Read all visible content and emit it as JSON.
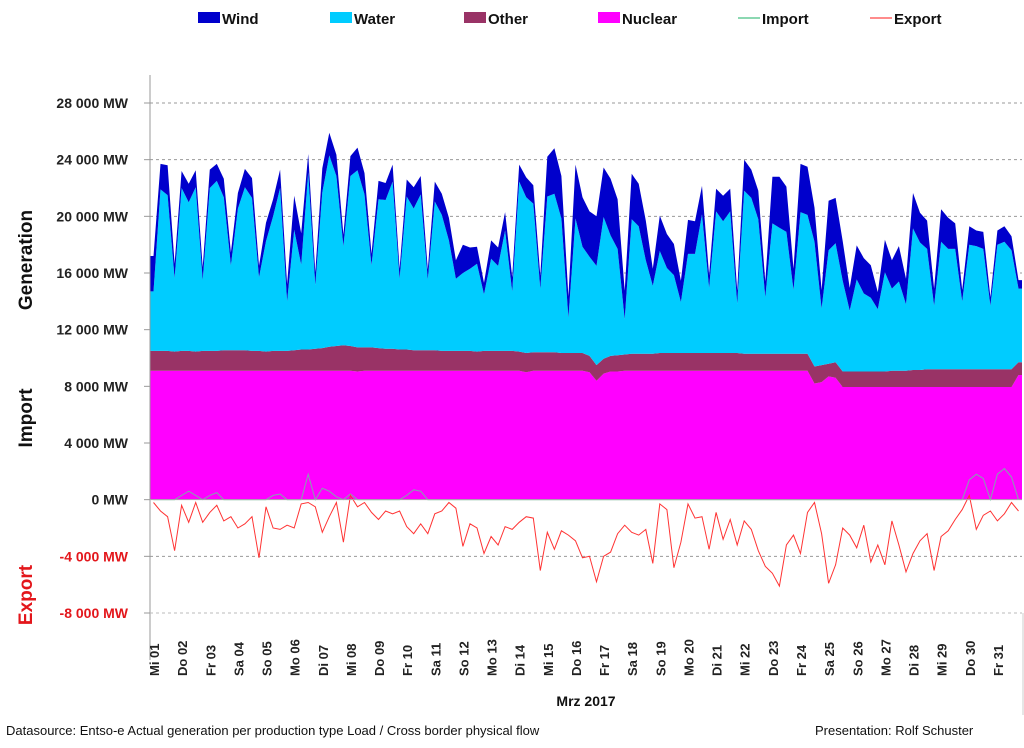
{
  "chart_data": {
    "type": "area",
    "title": "",
    "xlabel": "Mrz 2017",
    "ylabels": [
      {
        "text": "Generation",
        "color": "#111111"
      },
      {
        "text": "Import",
        "color": "#111111"
      },
      {
        "text": "Export",
        "color": "#e3161b"
      }
    ],
    "ylim": [
      -8000,
      28000
    ],
    "yticks": [
      {
        "value": 28000,
        "label": "28 000 MW",
        "negative": false
      },
      {
        "value": 24000,
        "label": "24 000 MW",
        "negative": false
      },
      {
        "value": 20000,
        "label": "20 000 MW",
        "negative": false
      },
      {
        "value": 16000,
        "label": "16 000 MW",
        "negative": false
      },
      {
        "value": 12000,
        "label": "12 000 MW",
        "negative": false
      },
      {
        "value": 8000,
        "label": "8 000 MW",
        "negative": false
      },
      {
        "value": 4000,
        "label": "4 000 MW",
        "negative": false
      },
      {
        "value": 0,
        "label": "0 MW",
        "negative": false
      },
      {
        "value": -4000,
        "label": "-4 000 MW",
        "negative": true
      },
      {
        "value": -8000,
        "label": "-8 000 MW",
        "negative": true
      }
    ],
    "grid": "dashed horizontal",
    "legend_position": "top",
    "categories": [
      "Mi 01",
      "Do 02",
      "Fr 03",
      "Sa 04",
      "So 05",
      "Mo 06",
      "Di 07",
      "Mi 08",
      "Do 09",
      "Fr 10",
      "Sa 11",
      "So 12",
      "Mo 13",
      "Di 14",
      "Mi 15",
      "Do 16",
      "Fr 17",
      "Sa 18",
      "So 19",
      "Mo 20",
      "Di 21",
      "Mi 22",
      "Do 23",
      "Fr 24",
      "Sa 25",
      "So 26",
      "Mo 27",
      "Di 28",
      "Mi 29",
      "Do 30",
      "Fr 31"
    ],
    "samples_per_day": 4,
    "series": [
      {
        "name": "Nuclear",
        "kind": "stacked-area",
        "color": "#ff00ff",
        "values": [
          9100,
          9100,
          9100,
          9100,
          9100,
          9100,
          9100,
          9100,
          9100,
          9100,
          9100,
          9100,
          9100,
          9100,
          9100,
          9100,
          9100,
          9100,
          9100,
          9100,
          9100,
          9100,
          9100,
          9100,
          9100,
          9100,
          9100,
          9100,
          9100,
          9050,
          9100,
          9100,
          9100,
          9100,
          9100,
          9100,
          9100,
          9100,
          9100,
          9100,
          9100,
          9100,
          9100,
          9100,
          9100,
          9100,
          9100,
          9100,
          9100,
          9100,
          9100,
          9100,
          9100,
          9000,
          9100,
          9100,
          9100,
          9100,
          9100,
          9100,
          9100,
          9100,
          9000,
          8400,
          8900,
          9050,
          9050,
          9100,
          9100,
          9100,
          9100,
          9100,
          9100,
          9100,
          9100,
          9100,
          9100,
          9100,
          9100,
          9100,
          9100,
          9100,
          9100,
          9100,
          9100,
          9100,
          9100,
          9100,
          9100,
          9100,
          9100,
          9100,
          9100,
          9100,
          8200,
          8300,
          8700,
          8600,
          7950,
          7950,
          7950,
          7950,
          7950,
          7950,
          7950,
          7950,
          7950,
          7950,
          7950,
          7950,
          7950,
          7950,
          7950,
          7950,
          7950,
          7950,
          7950,
          7950,
          7950,
          7950,
          7950,
          7950,
          7950,
          8800
        ]
      },
      {
        "name": "Other",
        "kind": "stacked-area",
        "color": "#993366",
        "values": [
          1400,
          1400,
          1400,
          1350,
          1400,
          1400,
          1350,
          1400,
          1400,
          1400,
          1450,
          1450,
          1450,
          1450,
          1400,
          1400,
          1350,
          1400,
          1400,
          1400,
          1450,
          1500,
          1500,
          1550,
          1600,
          1700,
          1750,
          1800,
          1750,
          1700,
          1650,
          1650,
          1600,
          1550,
          1550,
          1500,
          1500,
          1450,
          1450,
          1450,
          1450,
          1400,
          1400,
          1400,
          1400,
          1400,
          1350,
          1400,
          1400,
          1400,
          1400,
          1400,
          1350,
          1350,
          1300,
          1300,
          1300,
          1300,
          1250,
          1250,
          1250,
          1250,
          1150,
          1100,
          1050,
          1100,
          1150,
          1150,
          1200,
          1200,
          1200,
          1200,
          1250,
          1250,
          1250,
          1250,
          1250,
          1250,
          1250,
          1250,
          1250,
          1250,
          1250,
          1250,
          1200,
          1200,
          1200,
          1200,
          1200,
          1200,
          1200,
          1200,
          1200,
          1200,
          1200,
          1200,
          900,
          1100,
          1100,
          1100,
          1100,
          1100,
          1100,
          1100,
          1100,
          1150,
          1150,
          1150,
          1200,
          1200,
          1250,
          1250,
          1250,
          1250,
          1250,
          1250,
          1250,
          1250,
          1250,
          1250,
          1250,
          1250,
          1250,
          900
        ]
      },
      {
        "name": "Water",
        "kind": "stacked-area",
        "color": "#00ccff",
        "values": [
          4200,
          11400,
          11000,
          5200,
          11500,
          10500,
          11600,
          5000,
          11500,
          12000,
          10800,
          6000,
          10000,
          11500,
          10800,
          5200,
          7800,
          9500,
          11500,
          3500,
          8500,
          6000,
          12500,
          4500,
          11000,
          13500,
          12000,
          7000,
          12000,
          12500,
          10800,
          5800,
          10500,
          10500,
          11800,
          5000,
          10800,
          10000,
          11000,
          5000,
          10500,
          9600,
          7800,
          5100,
          5500,
          5800,
          6200,
          4000,
          6500,
          6000,
          8500,
          4200,
          12000,
          11000,
          10500,
          4500,
          11000,
          11200,
          9500,
          2500,
          9500,
          7500,
          7000,
          7000,
          10000,
          8500,
          7500,
          2500,
          9500,
          9000,
          6600,
          4800,
          7200,
          6000,
          5500,
          3600,
          7000,
          7000,
          9800,
          4600,
          10000,
          9300,
          10000,
          3500,
          11500,
          11000,
          9500,
          4000,
          9200,
          8900,
          8600,
          4500,
          10000,
          9800,
          8800,
          4000,
          8000,
          8400,
          6400,
          4300,
          6500,
          5500,
          5200,
          4400,
          7000,
          5800,
          6300,
          4700,
          10000,
          9000,
          8500,
          4500,
          9000,
          8500,
          8500,
          4800,
          8800,
          8700,
          8500,
          4500,
          8800,
          9000,
          8400,
          5200
        ]
      },
      {
        "name": "Wind",
        "kind": "stacked-area",
        "color": "#0000cc",
        "values": [
          2500,
          1800,
          2100,
          1000,
          1200,
          1300,
          1200,
          900,
          1300,
          1200,
          1300,
          900,
          1100,
          1300,
          1400,
          800,
          1300,
          1200,
          1300,
          1200,
          2400,
          2200,
          1300,
          900,
          1700,
          1600,
          1500,
          800,
          1400,
          1600,
          1500,
          800,
          1300,
          1200,
          1200,
          700,
          1200,
          1500,
          1300,
          700,
          1400,
          1500,
          1600,
          1300,
          2000,
          1500,
          1200,
          800,
          1300,
          1300,
          1300,
          1000,
          1200,
          1400,
          1300,
          900,
          2800,
          3200,
          3000,
          1500,
          3800,
          3500,
          3200,
          3500,
          3500,
          4000,
          3500,
          2000,
          3200,
          3000,
          2800,
          1200,
          2500,
          2400,
          2200,
          1500,
          2400,
          2300,
          2000,
          900,
          1600,
          1800,
          1600,
          900,
          2200,
          2000,
          2000,
          1100,
          3300,
          3600,
          3200,
          1500,
          3400,
          3400,
          2400,
          1300,
          3500,
          3200,
          2800,
          1600,
          2400,
          2500,
          2300,
          1200,
          2300,
          2000,
          2500,
          1800,
          2500,
          2100,
          2000,
          1200,
          2300,
          2200,
          1800,
          800,
          1300,
          1100,
          1200,
          600,
          1000,
          1100,
          1000,
          600,
          1000,
          1000,
          1100,
          900
        ]
      },
      {
        "name": "Import",
        "kind": "line",
        "color": "#66cc99",
        "values": [
          0,
          0,
          0,
          0,
          300,
          600,
          300,
          0,
          300,
          500,
          0,
          0,
          0,
          0,
          0,
          0,
          0,
          300,
          400,
          0,
          0,
          0,
          1800,
          0,
          800,
          600,
          200,
          0,
          400,
          0,
          0,
          0,
          0,
          0,
          0,
          0,
          300,
          700,
          600,
          0,
          0,
          0,
          0,
          0,
          0,
          0,
          0,
          0,
          0,
          0,
          0,
          0,
          0,
          0,
          0,
          0,
          0,
          0,
          0,
          0,
          0,
          0,
          0,
          0,
          0,
          0,
          0,
          0,
          0,
          0,
          0,
          0,
          0,
          0,
          0,
          0,
          0,
          0,
          0,
          0,
          0,
          0,
          0,
          0,
          0,
          0,
          0,
          0,
          0,
          0,
          0,
          0,
          0,
          0,
          0,
          0,
          0,
          0,
          0,
          0,
          0,
          0,
          0,
          0,
          0,
          0,
          0,
          0,
          0,
          0,
          0,
          0,
          0,
          0,
          0,
          0,
          1400,
          1800,
          1500,
          0,
          1800,
          2200,
          1600,
          0,
          1500,
          2000,
          1700,
          0
        ]
      },
      {
        "name": "Export",
        "kind": "line",
        "color": "#ff3333",
        "values": [
          -200,
          -800,
          -1200,
          -3600,
          -400,
          -1600,
          -200,
          -1600,
          -900,
          -400,
          -1500,
          -1200,
          -2000,
          -1700,
          -1200,
          -4100,
          -500,
          -2000,
          -2100,
          -1800,
          -2000,
          -300,
          -200,
          -500,
          -2300,
          -1200,
          -200,
          -3000,
          300,
          -500,
          -200,
          -900,
          -1400,
          -800,
          -1000,
          -800,
          -1900,
          -2400,
          -1700,
          -2400,
          -1000,
          -800,
          -200,
          -600,
          -3300,
          -1700,
          -2000,
          -3800,
          -2600,
          -3200,
          -1900,
          -2100,
          -1600,
          -1200,
          -1300,
          -5000,
          -2300,
          -3500,
          -2200,
          -2500,
          -2900,
          -4100,
          -4000,
          -5800,
          -4000,
          -3700,
          -2400,
          -1800,
          -2300,
          -2500,
          -2100,
          -4500,
          -300,
          -700,
          -4800,
          -3000,
          -300,
          -1300,
          -1200,
          -3500,
          -900,
          -2800,
          -1400,
          -3200,
          -1500,
          -2100,
          -3600,
          -4700,
          -5200,
          -6100,
          -3200,
          -2500,
          -3800,
          -900,
          -200,
          -2400,
          -5900,
          -4600,
          -2000,
          -2500,
          -3400,
          -1800,
          -4400,
          -3200,
          -4600,
          -1500,
          -3200,
          -5100,
          -3800,
          -2900,
          -2400,
          -5000,
          -2600,
          -2200,
          -1400,
          -700,
          300,
          -2100,
          -1100,
          -800,
          -1500,
          -1000,
          -200,
          -800,
          -1000,
          -400,
          -1200,
          -4000
        ]
      }
    ]
  },
  "legend": [
    {
      "label": "Wind",
      "type": "swatch",
      "color": "#0000cc"
    },
    {
      "label": "Water",
      "type": "swatch",
      "color": "#00ccff"
    },
    {
      "label": "Other",
      "type": "swatch",
      "color": "#993366"
    },
    {
      "label": "Nuclear",
      "type": "swatch",
      "color": "#ff00ff"
    },
    {
      "label": "Import",
      "type": "line",
      "color": "#66cc99"
    },
    {
      "label": "Export",
      "type": "line",
      "color": "#ff6666"
    }
  ],
  "footer": {
    "source": "Datasource: Entso-e  Actual generation per production type    Load   /  Cross border physical flow",
    "author": "Presentation: Rolf Schuster"
  }
}
